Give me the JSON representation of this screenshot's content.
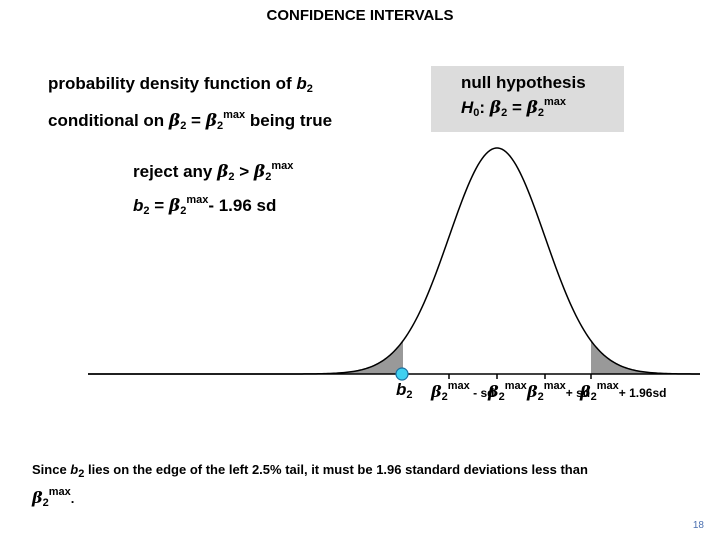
{
  "title": "CONFIDENCE INTERVALS",
  "pdf_label": {
    "line1_text": "probability density function of ",
    "b_symbol": "b",
    "b_sub": "2",
    "line2_text": "conditional on ",
    "beta_symbol": "β",
    "beta_sub": "2",
    "equals": " = ",
    "beta_sup": "max",
    "line2_tail": " being true"
  },
  "null_hypothesis": {
    "heading": "null hypothesis",
    "H": "H",
    "H_sub": "0",
    "colon": ": ",
    "beta_symbol": "β",
    "beta_sub": "2",
    "equals": " = ",
    "beta_sup": "max"
  },
  "reject_rule": {
    "prefix": "reject any ",
    "beta_symbol": "β",
    "beta_sub": "2",
    "gt": " > ",
    "beta_sup": "max"
  },
  "b2_equation": {
    "b_symbol": "b",
    "b_sub": "2",
    "equals": " = ",
    "beta_symbol": "β",
    "beta_sub": "2",
    "beta_sup": "max",
    "tail": "- 1.96 sd"
  },
  "axis_labels": {
    "b2": {
      "b": "b",
      "sub": "2"
    },
    "minus_sd": {
      "beta": "β",
      "sub": "2",
      "sup": "max",
      "text": " - sd"
    },
    "center": {
      "beta": "β",
      "sub": "2",
      "sup": "max"
    },
    "plus_sd": {
      "beta": "β",
      "sub": "2",
      "sup": "max",
      "text": "+ sd"
    },
    "plus_196sd": {
      "beta": "β",
      "sub": "2",
      "sup": "max",
      "text": "+ 1.96sd"
    }
  },
  "note": {
    "text1": "Since ",
    "b": "b",
    "b_sub": "2",
    "text2": " lies on the edge of the left 2.5% tail, it must be 1.96 standard deviations less than ",
    "beta": "β",
    "beta_sub": "2",
    "beta_sup": "max",
    "text3": "."
  },
  "page_number": "18",
  "colors": {
    "curve": "#000000",
    "tail_fill": "#999999",
    "marker_fill": "#3fd0f0",
    "marker_stroke": "#1a6fa0",
    "null_box": "#dcdcdc"
  }
}
